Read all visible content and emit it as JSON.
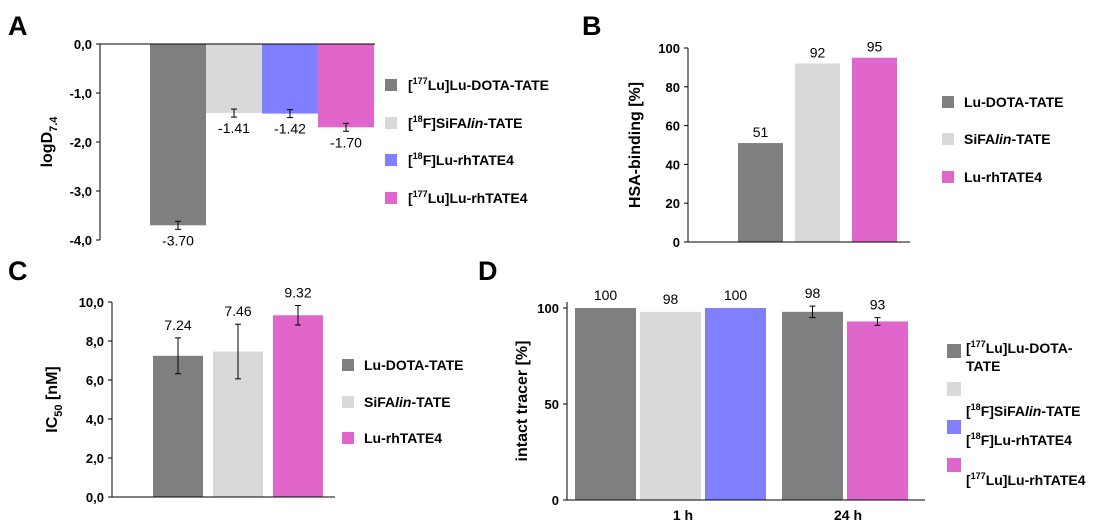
{
  "colors": {
    "dark_gray": "#7f7f7f",
    "light_gray": "#d9d9d9",
    "blue": "#7f7fff",
    "magenta": "#e066cc"
  },
  "panels": [
    {
      "letter": "A"
    },
    {
      "letter": "B"
    },
    {
      "letter": "C"
    },
    {
      "letter": "D"
    }
  ],
  "chart_data": [
    {
      "panel": "A",
      "type": "bar",
      "ylabel_main": "logD",
      "ylabel_sub": "7.4",
      "ylim": [
        -4.0,
        0.0
      ],
      "yticks": [
        "0,0",
        "-1,0",
        "-2,0",
        "-3,0",
        "-4,0"
      ],
      "ytick_values": [
        0,
        -1,
        -2,
        -3,
        -4
      ],
      "legend_position": "right",
      "series": [
        {
          "legend_sup": "177",
          "legend_main": "Lu]Lu-DOTA-TATE",
          "color_key": "dark_gray",
          "value": -3.7,
          "label": "-3.70",
          "error": 0.05
        },
        {
          "legend_sup": "18",
          "legend_main": "F]SiFA",
          "legend_ital": "lin",
          "legend_tail": "-TATE",
          "color_key": "light_gray",
          "value": -1.41,
          "label": "-1.41",
          "error": 0.07
        },
        {
          "legend_sup": "18",
          "legend_main": "F]Lu-rhTATE4",
          "color_key": "blue",
          "value": -1.42,
          "label": "-1.42",
          "error": 0.04
        },
        {
          "legend_sup": "177",
          "legend_main": "Lu]Lu-rhTATE4",
          "color_key": "magenta",
          "value": -1.7,
          "label": "-1.70",
          "error": 0.05
        }
      ]
    },
    {
      "panel": "B",
      "type": "bar",
      "ylabel": "HSA-binding [%]",
      "ylim": [
        0,
        100
      ],
      "yticks": [
        "0",
        "20",
        "40",
        "60",
        "80",
        "100"
      ],
      "ytick_values": [
        0,
        20,
        40,
        60,
        80,
        100
      ],
      "legend_position": "right",
      "series": [
        {
          "legend_main": "Lu-DOTA-TATE",
          "color_key": "dark_gray",
          "value": 51,
          "label": "51"
        },
        {
          "legend_main": "SiFA",
          "legend_ital": "lin",
          "legend_tail": "-TATE",
          "color_key": "light_gray",
          "value": 92,
          "label": "92"
        },
        {
          "legend_main": "Lu-rhTATE4",
          "color_key": "magenta",
          "value": 95,
          "label": "95"
        }
      ]
    },
    {
      "panel": "C",
      "type": "bar",
      "ylabel_main": "IC",
      "ylabel_sub": "50",
      "ylabel_tail": " [nM]",
      "ylim": [
        0,
        10
      ],
      "yticks": [
        "0,0",
        "2,0",
        "4,0",
        "6,0",
        "8,0",
        "10,0"
      ],
      "ytick_values": [
        0,
        2,
        4,
        6,
        8,
        10
      ],
      "legend_position": "right",
      "series": [
        {
          "legend_main": "Lu-DOTA-TATE",
          "color_key": "dark_gray",
          "value": 7.24,
          "label": "7.24",
          "error": 0.92
        },
        {
          "legend_main": "SiFA",
          "legend_ital": "lin",
          "legend_tail": "-TATE",
          "color_key": "light_gray",
          "value": 7.46,
          "label": "7.46",
          "error": 1.4
        },
        {
          "legend_main": "Lu-rhTATE4",
          "color_key": "magenta",
          "value": 9.32,
          "label": "9.32",
          "error": 0.5
        }
      ]
    },
    {
      "panel": "D",
      "type": "bar",
      "ylabel": "intact tracer [%]",
      "ylim": [
        0,
        100
      ],
      "yticks": [
        "0",
        "50",
        "100"
      ],
      "ytick_values": [
        0,
        50,
        100
      ],
      "categories": [
        "1 h",
        "24 h"
      ],
      "legend_position": "right",
      "series": [
        {
          "legend_sup": "177",
          "legend_main": "Lu]Lu-DOTA-",
          "legend_line2": "TATE",
          "color_key": "dark_gray",
          "values": [
            100,
            98
          ],
          "labels": [
            "100",
            "98"
          ],
          "errors": [
            0,
            3
          ]
        },
        {
          "legend_sup": "18",
          "legend_main": "F]SiFA",
          "legend_ital": "lin",
          "legend_tail": "-TATE",
          "color_key": "light_gray",
          "values": [
            98,
            null
          ],
          "labels": [
            "98",
            ""
          ],
          "errors": [
            0,
            0
          ]
        },
        {
          "legend_sup": "18",
          "legend_main": "F]Lu-rhTATE4",
          "color_key": "blue",
          "values": [
            100,
            null
          ],
          "labels": [
            "100",
            ""
          ],
          "errors": [
            0,
            0
          ]
        },
        {
          "legend_sup": "177",
          "legend_main": "Lu]Lu-rhTATE4",
          "color_key": "magenta",
          "values": [
            null,
            93
          ],
          "labels": [
            "",
            "93"
          ],
          "errors": [
            0,
            2
          ]
        }
      ]
    }
  ]
}
